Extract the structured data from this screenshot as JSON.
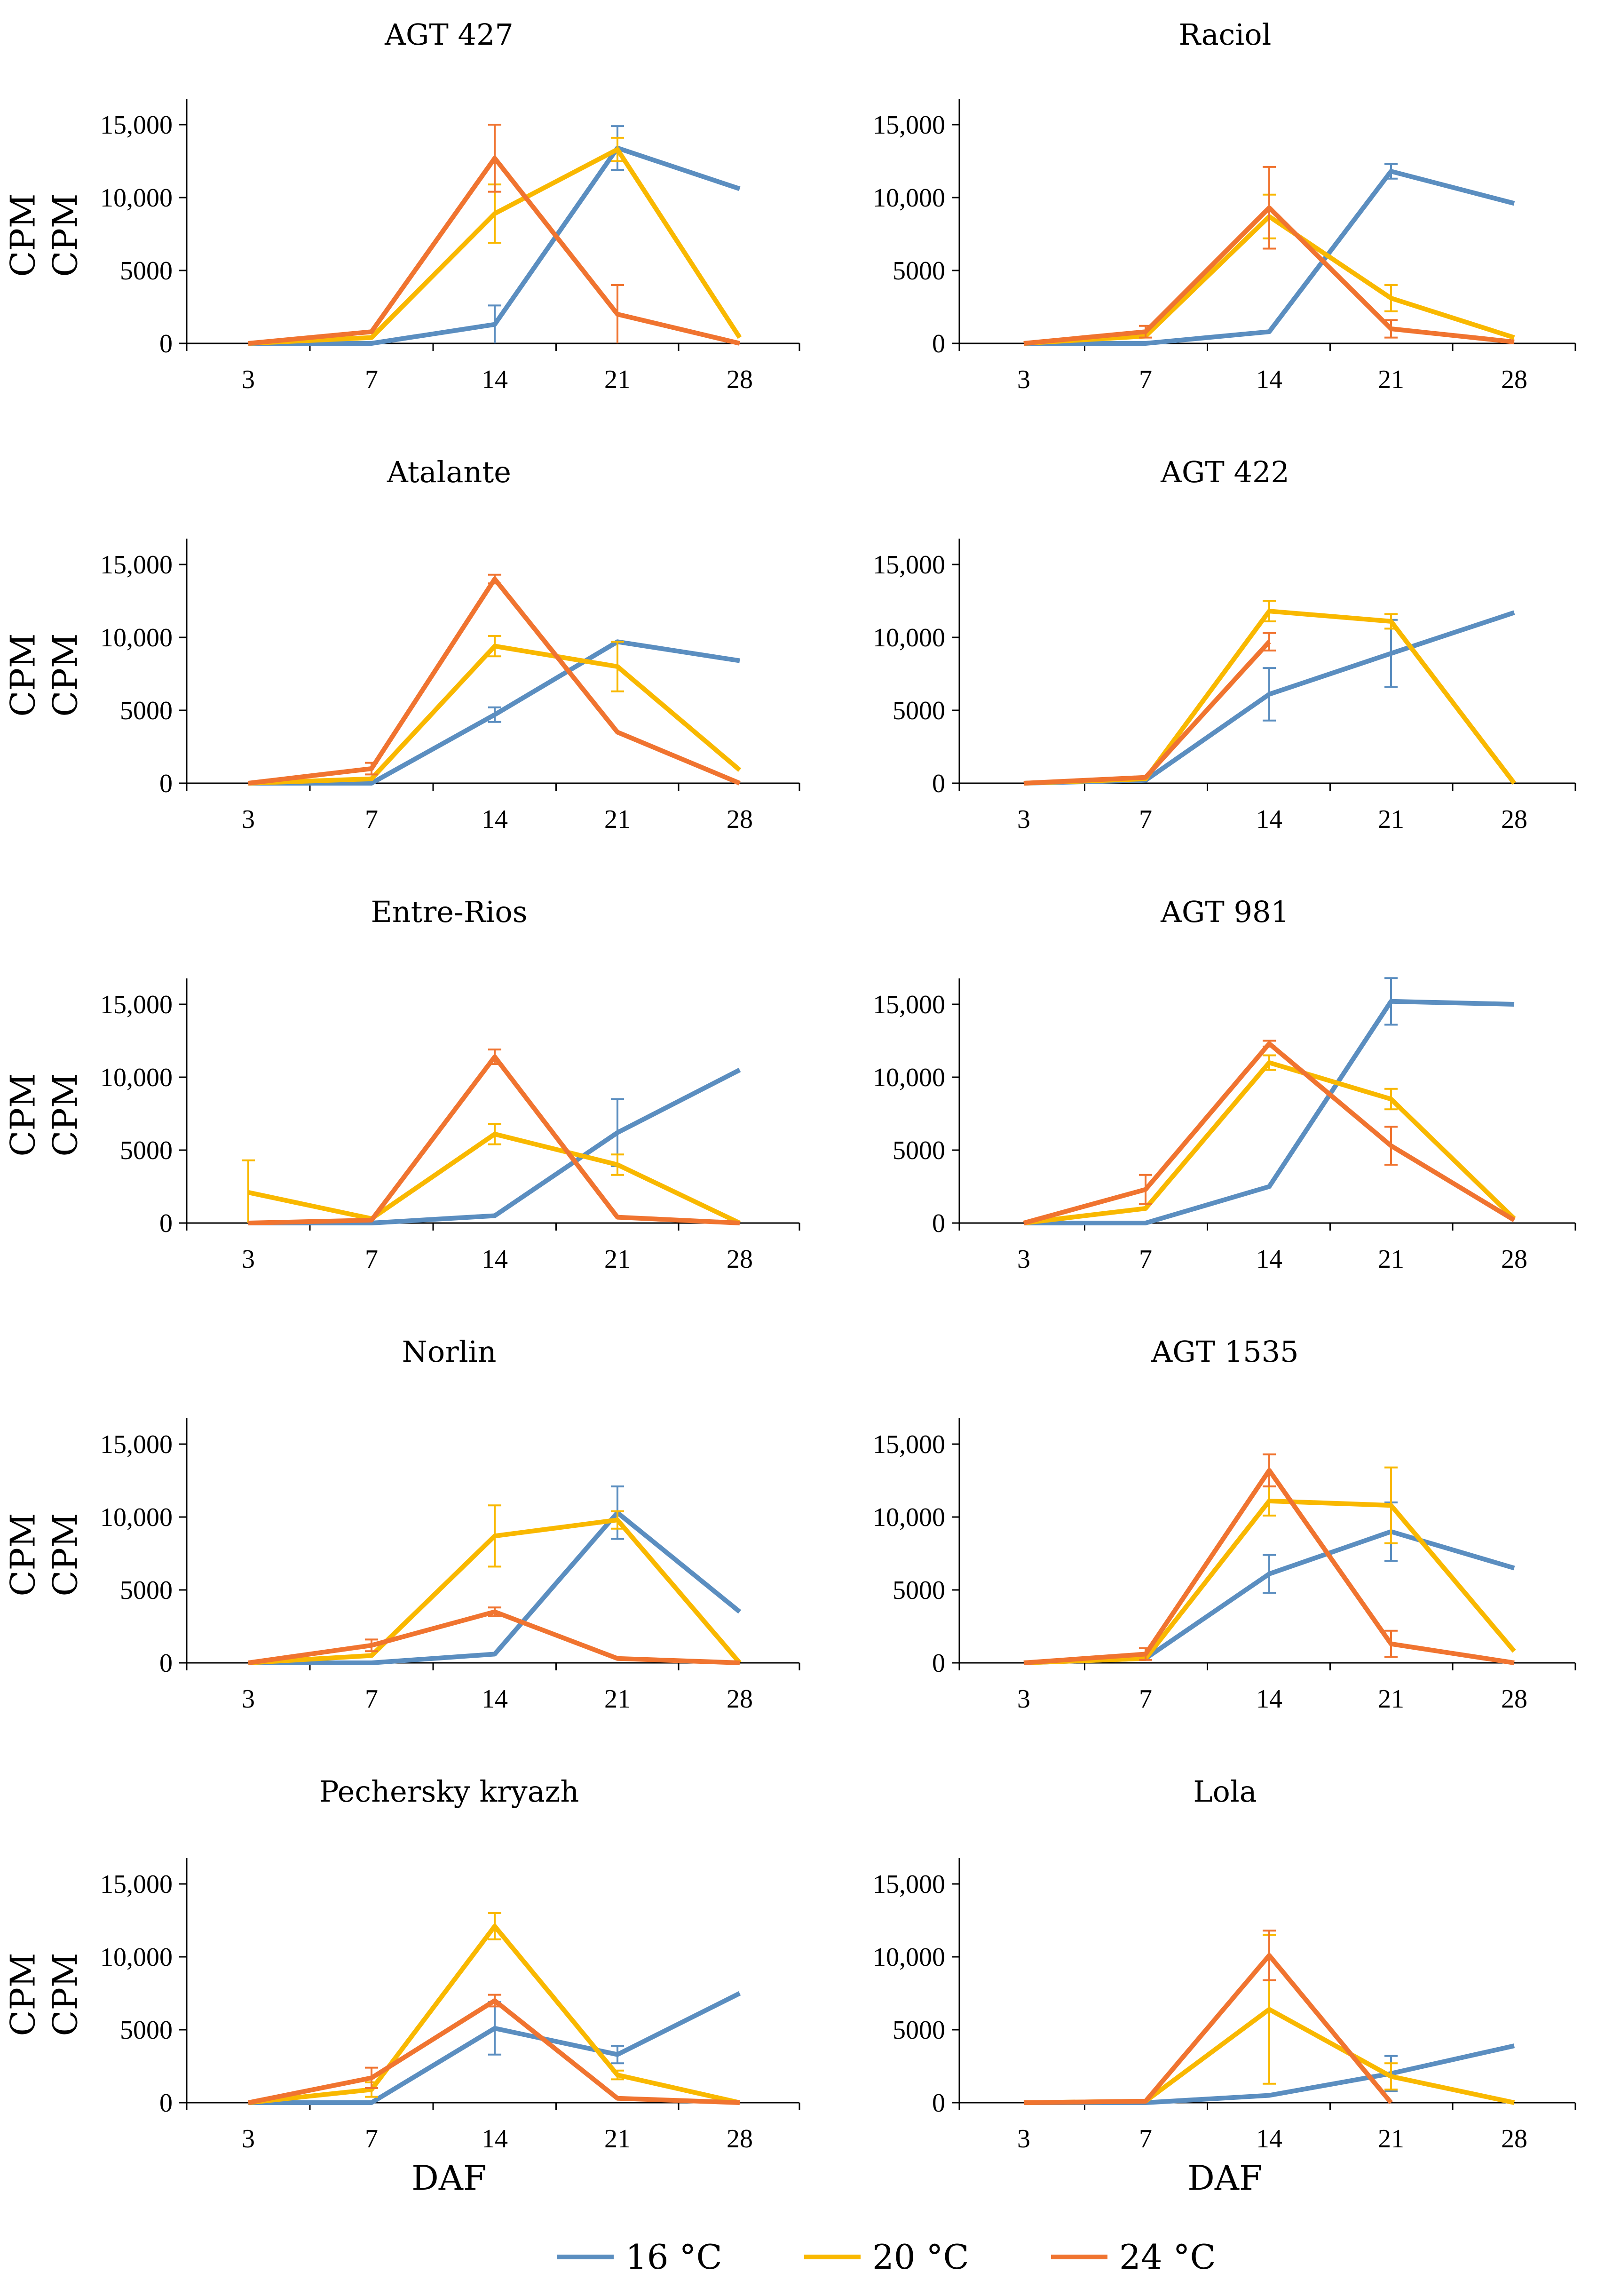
{
  "chart_data": {
    "type": "line",
    "x": [
      3,
      7,
      14,
      21,
      28
    ],
    "x_tick_labels": [
      "3",
      "7",
      "14",
      "21",
      "28"
    ],
    "y_tick_labels": [
      "0",
      "5000",
      "10,000",
      "15,000"
    ],
    "ylim": [
      0,
      17000
    ],
    "ylabel": "CPM",
    "xlabel": "DAF",
    "legend": [
      {
        "name": "16 °C",
        "color": "#5b8ec0"
      },
      {
        "name": "20 °C",
        "color": "#f9b800"
      },
      {
        "name": "24 °C",
        "color": "#f07430"
      }
    ],
    "panels": [
      {
        "title": "AGT 427",
        "series": [
          {
            "name": "16 °C",
            "values": [
              0,
              0,
              1300,
              13400,
              10600
            ],
            "err": [
              0,
              0,
              1300,
              1500,
              0
            ]
          },
          {
            "name": "20 °C",
            "values": [
              0,
              400,
              8900,
              13300,
              400
            ],
            "err": [
              0,
              0,
              2000,
              800,
              0
            ]
          },
          {
            "name": "24 °C",
            "values": [
              0,
              800,
              12700,
              2000,
              0
            ],
            "err": [
              0,
              0,
              2300,
              2000,
              0
            ]
          }
        ]
      },
      {
        "title": "Raciol",
        "series": [
          {
            "name": "16 °C",
            "values": [
              0,
              0,
              800,
              11800,
              9600
            ],
            "err": [
              0,
              0,
              0,
              500,
              0
            ]
          },
          {
            "name": "20 °C",
            "values": [
              0,
              500,
              8700,
              3100,
              400
            ],
            "err": [
              0,
              0,
              1500,
              900,
              0
            ]
          },
          {
            "name": "24 °C",
            "values": [
              0,
              800,
              9300,
              1000,
              100
            ],
            "err": [
              0,
              400,
              2800,
              600,
              0
            ]
          }
        ]
      },
      {
        "title": "Atalante",
        "series": [
          {
            "name": "16 °C",
            "values": [
              0,
              0,
              4700,
              9700,
              8400
            ],
            "err": [
              0,
              0,
              500,
              0,
              0
            ]
          },
          {
            "name": "20 °C",
            "values": [
              0,
              300,
              9400,
              8000,
              900
            ],
            "err": [
              0,
              0,
              700,
              1700,
              0
            ]
          },
          {
            "name": "24 °C",
            "values": [
              0,
              1000,
              14000,
              3500,
              0
            ],
            "err": [
              0,
              400,
              300,
              0,
              0
            ]
          }
        ]
      },
      {
        "title": "AGT 422",
        "series": [
          {
            "name": "16 °C",
            "values": [
              0,
              200,
              6100,
              8900,
              11700
            ],
            "err": [
              0,
              0,
              1800,
              2300,
              0
            ]
          },
          {
            "name": "20 °C",
            "values": [
              0,
              300,
              11800,
              11100,
              0
            ],
            "err": [
              0,
              0,
              700,
              500,
              0
            ]
          },
          {
            "name": "24 °C",
            "values": [
              0,
              400,
              9700,
              null,
              null
            ],
            "err": [
              0,
              0,
              600,
              0,
              0
            ]
          }
        ]
      },
      {
        "title": "Entre-Rios",
        "series": [
          {
            "name": "16 °C",
            "values": [
              0,
              0,
              500,
              6200,
              10500
            ],
            "err": [
              0,
              0,
              0,
              2300,
              0
            ]
          },
          {
            "name": "20 °C",
            "values": [
              2100,
              300,
              6100,
              4000,
              0
            ],
            "err": [
              2200,
              0,
              700,
              700,
              0
            ]
          },
          {
            "name": "24 °C",
            "values": [
              0,
              200,
              11400,
              400,
              0
            ],
            "err": [
              0,
              0,
              500,
              0,
              0
            ]
          }
        ]
      },
      {
        "title": "AGT 981",
        "series": [
          {
            "name": "16 °C",
            "values": [
              0,
              0,
              2500,
              15200,
              15000
            ],
            "err": [
              0,
              0,
              0,
              1600,
              0
            ]
          },
          {
            "name": "20 °C",
            "values": [
              0,
              1000,
              11000,
              8500,
              300
            ],
            "err": [
              0,
              0,
              500,
              700,
              0
            ]
          },
          {
            "name": "24 °C",
            "values": [
              0,
              2300,
              12300,
              5300,
              200
            ],
            "err": [
              0,
              1000,
              200,
              1300,
              0
            ]
          }
        ]
      },
      {
        "title": "Norlin",
        "series": [
          {
            "name": "16 °C",
            "values": [
              0,
              0,
              600,
              10300,
              3500
            ],
            "err": [
              0,
              0,
              0,
              1800,
              0
            ]
          },
          {
            "name": "20 °C",
            "values": [
              0,
              500,
              8700,
              9800,
              0
            ],
            "err": [
              0,
              0,
              2100,
              600,
              0
            ]
          },
          {
            "name": "24 °C",
            "values": [
              0,
              1200,
              3500,
              300,
              0
            ],
            "err": [
              0,
              400,
              300,
              0,
              0
            ]
          }
        ]
      },
      {
        "title": "AGT 1535",
        "series": [
          {
            "name": "16 °C",
            "values": [
              0,
              300,
              6100,
              9000,
              6500
            ],
            "err": [
              0,
              0,
              1300,
              2000,
              0
            ]
          },
          {
            "name": "20 °C",
            "values": [
              0,
              300,
              11100,
              10800,
              800
            ],
            "err": [
              0,
              0,
              1000,
              2600,
              0
            ]
          },
          {
            "name": "24 °C",
            "values": [
              0,
              600,
              13200,
              1300,
              0
            ],
            "err": [
              0,
              400,
              1100,
              900,
              0
            ]
          }
        ]
      },
      {
        "title": "Pechersky kryazh",
        "series": [
          {
            "name": "16 °C",
            "values": [
              0,
              0,
              5100,
              3300,
              7500
            ],
            "err": [
              0,
              0,
              1800,
              600,
              0
            ]
          },
          {
            "name": "20 °C",
            "values": [
              0,
              900,
              12100,
              1900,
              0
            ],
            "err": [
              0,
              500,
              900,
              300,
              0
            ]
          },
          {
            "name": "24 °C",
            "values": [
              0,
              1700,
              7000,
              300,
              0
            ],
            "err": [
              0,
              700,
              400,
              0,
              0
            ]
          }
        ]
      },
      {
        "title": "Lola",
        "series": [
          {
            "name": "16 °C",
            "values": [
              0,
              0,
              500,
              2000,
              3900
            ],
            "err": [
              0,
              0,
              0,
              1200,
              0
            ]
          },
          {
            "name": "20 °C",
            "values": [
              0,
              100,
              6400,
              1800,
              0
            ],
            "err": [
              0,
              0,
              5100,
              900,
              0
            ]
          },
          {
            "name": "24 °C",
            "values": [
              0,
              100,
              10100,
              0,
              null
            ],
            "err": [
              0,
              0,
              1700,
              0,
              0
            ]
          }
        ]
      }
    ]
  }
}
